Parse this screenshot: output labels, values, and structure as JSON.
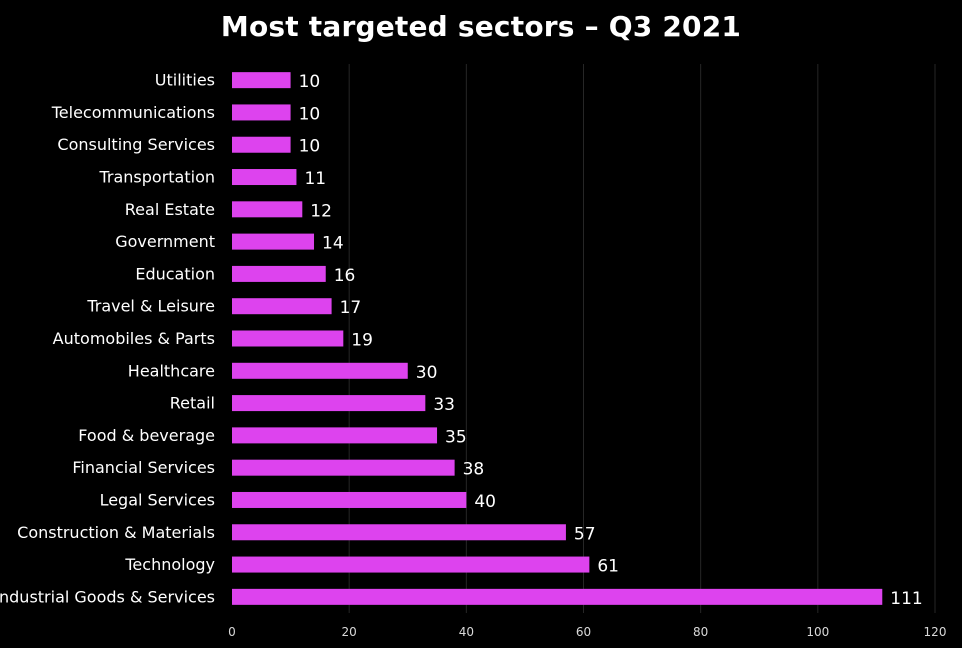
{
  "chart_data": {
    "type": "bar",
    "orientation": "horizontal",
    "title": "Most targeted sectors – Q3 2021",
    "categories": [
      "Utilities",
      "Telecommunications",
      "Consulting Services",
      "Transportation",
      "Real Estate",
      "Government",
      "Education",
      "Travel & Leisure",
      "Automobiles & Parts",
      "Healthcare",
      "Retail",
      "Food & beverage",
      "Financial Services",
      "Legal Services",
      "Construction & Materials",
      "Technology",
      "Industrial Goods & Services"
    ],
    "values": [
      10,
      10,
      10,
      11,
      12,
      14,
      16,
      17,
      19,
      30,
      33,
      35,
      38,
      40,
      57,
      61,
      111
    ],
    "xlim": [
      0,
      120
    ],
    "xticks": [
      0,
      20,
      40,
      60,
      80,
      100,
      120
    ],
    "grid": true,
    "data_labels": true,
    "colors": {
      "bar": "#dd43ee",
      "background": "#000000",
      "grid": "#262626",
      "text": "#ffffff"
    }
  }
}
